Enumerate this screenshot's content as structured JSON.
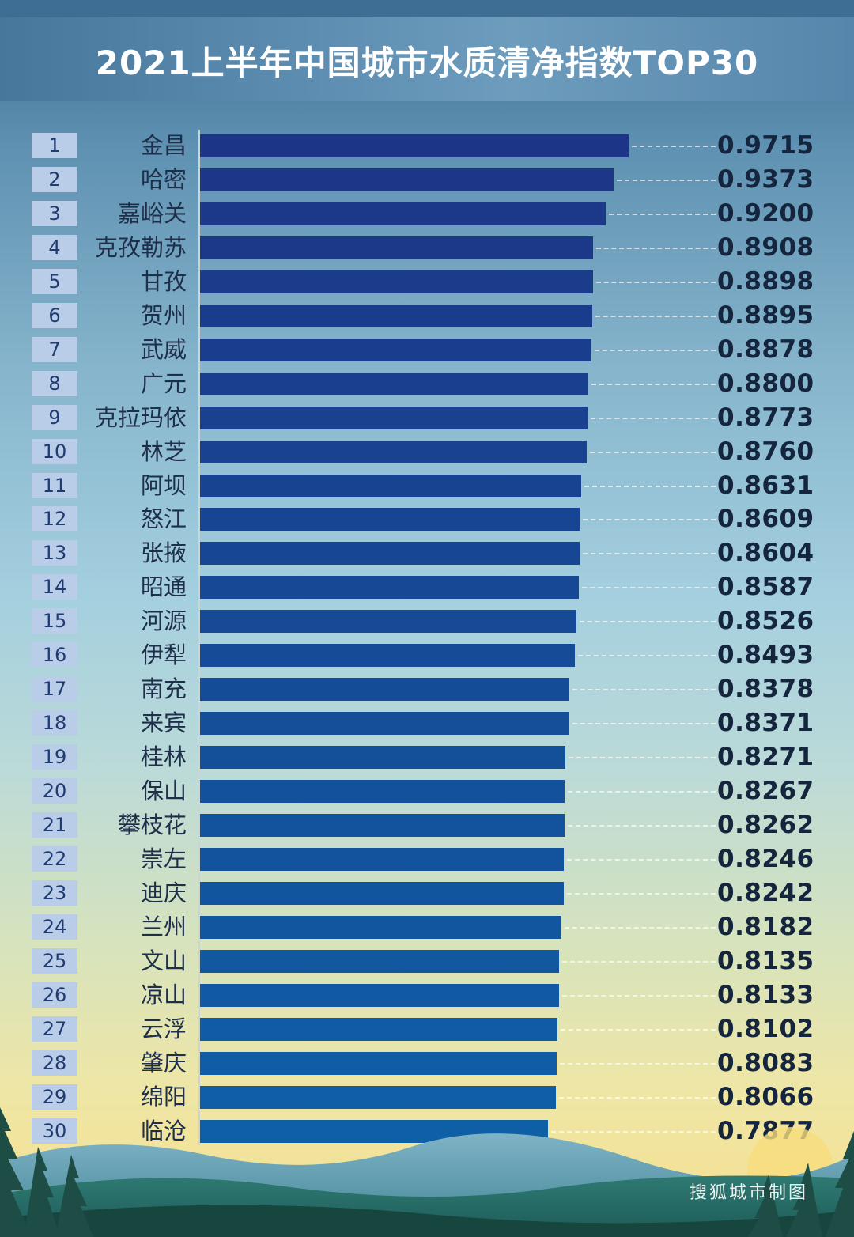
{
  "title": "2021上半年中国城市水质清净指数TOP30",
  "credit": "搜狐城市制图",
  "colors": {
    "bar_top": "#1d3586",
    "bar_bottom": "#0f5fa7",
    "rank_box": "#b9cde9"
  },
  "chart_data": {
    "type": "bar",
    "orientation": "horizontal",
    "title": "2021上半年中国城市水质清净指数TOP30",
    "xlabel": "",
    "ylabel": "",
    "grid": false,
    "categories": [
      "金昌",
      "哈密",
      "嘉峪关",
      "克孜勒苏",
      "甘孜",
      "贺州",
      "武威",
      "广元",
      "克拉玛依",
      "林芝",
      "阿坝",
      "怒江",
      "张掖",
      "昭通",
      "河源",
      "伊犁",
      "南充",
      "来宾",
      "桂林",
      "保山",
      "攀枝花",
      "崇左",
      "迪庆",
      "兰州",
      "文山",
      "凉山",
      "云浮",
      "肇庆",
      "绵阳",
      "临沧"
    ],
    "ranks": [
      "1",
      "2",
      "3",
      "4",
      "5",
      "6",
      "7",
      "8",
      "9",
      "10",
      "11",
      "12",
      "13",
      "14",
      "15",
      "16",
      "17",
      "18",
      "19",
      "20",
      "21",
      "22",
      "23",
      "24",
      "25",
      "26",
      "27",
      "28",
      "29",
      "30"
    ],
    "values": [
      0.9715,
      0.9373,
      0.92,
      0.8908,
      0.8898,
      0.8895,
      0.8878,
      0.88,
      0.8773,
      0.876,
      0.8631,
      0.8609,
      0.8604,
      0.8587,
      0.8526,
      0.8493,
      0.8378,
      0.8371,
      0.8271,
      0.8267,
      0.8262,
      0.8246,
      0.8242,
      0.8182,
      0.8135,
      0.8133,
      0.8102,
      0.8083,
      0.8066,
      0.7877
    ],
    "value_labels": [
      "0.9715",
      "0.9373",
      "0.9200",
      "0.8908",
      "0.8898",
      "0.8895",
      "0.8878",
      "0.8800",
      "0.8773",
      "0.8760",
      "0.8631",
      "0.8609",
      "0.8604",
      "0.8587",
      "0.8526",
      "0.8493",
      "0.8378",
      "0.8371",
      "0.8271",
      "0.8267",
      "0.8262",
      "0.8246",
      "0.8242",
      "0.8182",
      "0.8135",
      "0.8133",
      "0.8102",
      "0.8083",
      "0.8066",
      "0.7877"
    ],
    "xlim": [
      0,
      1
    ]
  }
}
